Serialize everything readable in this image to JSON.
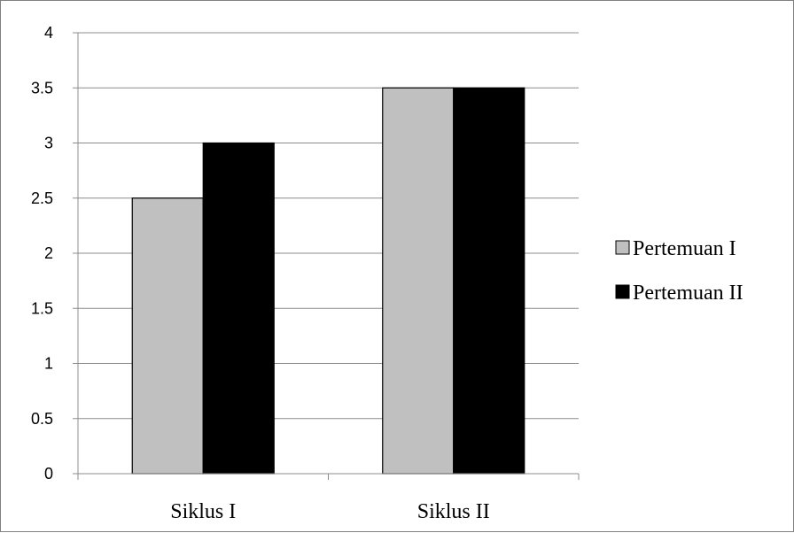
{
  "chart_data": {
    "type": "bar",
    "title": "",
    "xlabel": "",
    "ylabel": "",
    "categories": [
      "Siklus I",
      "Siklus II"
    ],
    "series": [
      {
        "name": "Pertemuan I",
        "values": [
          2.5,
          3.5
        ],
        "color": "#c0c0c0"
      },
      {
        "name": "Pertemuan II",
        "values": [
          3,
          3.5
        ],
        "color": "#000000"
      }
    ],
    "ylim": [
      0,
      4
    ],
    "yticks": [
      "0",
      "0.5",
      "1",
      "1.5",
      "2",
      "2.5",
      "3",
      "3.5",
      "4"
    ],
    "grid": true,
    "legend_position": "right"
  }
}
